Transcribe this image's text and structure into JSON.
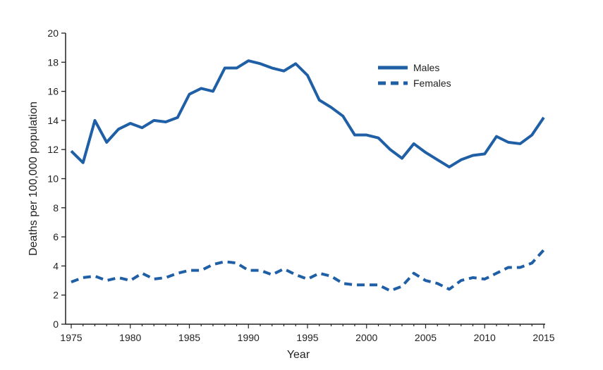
{
  "chart_data": {
    "type": "line",
    "xlabel": "Year",
    "ylabel": "Deaths per 100,000 population",
    "xlim": [
      1975,
      2015
    ],
    "ylim": [
      0,
      20
    ],
    "x_ticks": [
      1975,
      1980,
      1985,
      1990,
      1995,
      2000,
      2005,
      2010,
      2015
    ],
    "y_ticks": [
      0,
      2,
      4,
      6,
      8,
      10,
      12,
      14,
      16,
      18,
      20
    ],
    "grid": false,
    "legend_position": "top-right",
    "x": [
      1975,
      1976,
      1977,
      1978,
      1979,
      1980,
      1981,
      1982,
      1983,
      1984,
      1985,
      1986,
      1987,
      1988,
      1989,
      1990,
      1991,
      1992,
      1993,
      1994,
      1995,
      1996,
      1997,
      1998,
      1999,
      2000,
      2001,
      2002,
      2003,
      2004,
      2005,
      2006,
      2007,
      2008,
      2009,
      2010,
      2011,
      2012,
      2013,
      2014,
      2015
    ],
    "series": [
      {
        "name": "Males",
        "style": "solid",
        "color": "#1f5fa6",
        "values": [
          11.9,
          11.1,
          14.0,
          12.5,
          13.4,
          13.8,
          13.5,
          14.0,
          13.9,
          14.2,
          15.8,
          16.2,
          16.0,
          17.6,
          17.6,
          18.1,
          17.9,
          17.6,
          17.4,
          17.9,
          17.1,
          15.4,
          14.9,
          14.3,
          13.0,
          13.0,
          12.8,
          12.0,
          11.4,
          12.4,
          11.8,
          11.3,
          10.8,
          11.3,
          11.6,
          11.7,
          12.9,
          12.5,
          12.4,
          13.0,
          14.2
        ]
      },
      {
        "name": "Females",
        "style": "dashed",
        "color": "#1f5fa6",
        "values": [
          2.9,
          3.2,
          3.3,
          3.0,
          3.2,
          3.0,
          3.5,
          3.1,
          3.2,
          3.5,
          3.7,
          3.7,
          4.1,
          4.3,
          4.2,
          3.7,
          3.7,
          3.4,
          3.8,
          3.4,
          3.1,
          3.5,
          3.3,
          2.8,
          2.7,
          2.7,
          2.7,
          2.3,
          2.6,
          3.5,
          3.0,
          2.8,
          2.4,
          3.0,
          3.2,
          3.1,
          3.5,
          3.9,
          3.9,
          4.2,
          5.1
        ]
      }
    ]
  }
}
